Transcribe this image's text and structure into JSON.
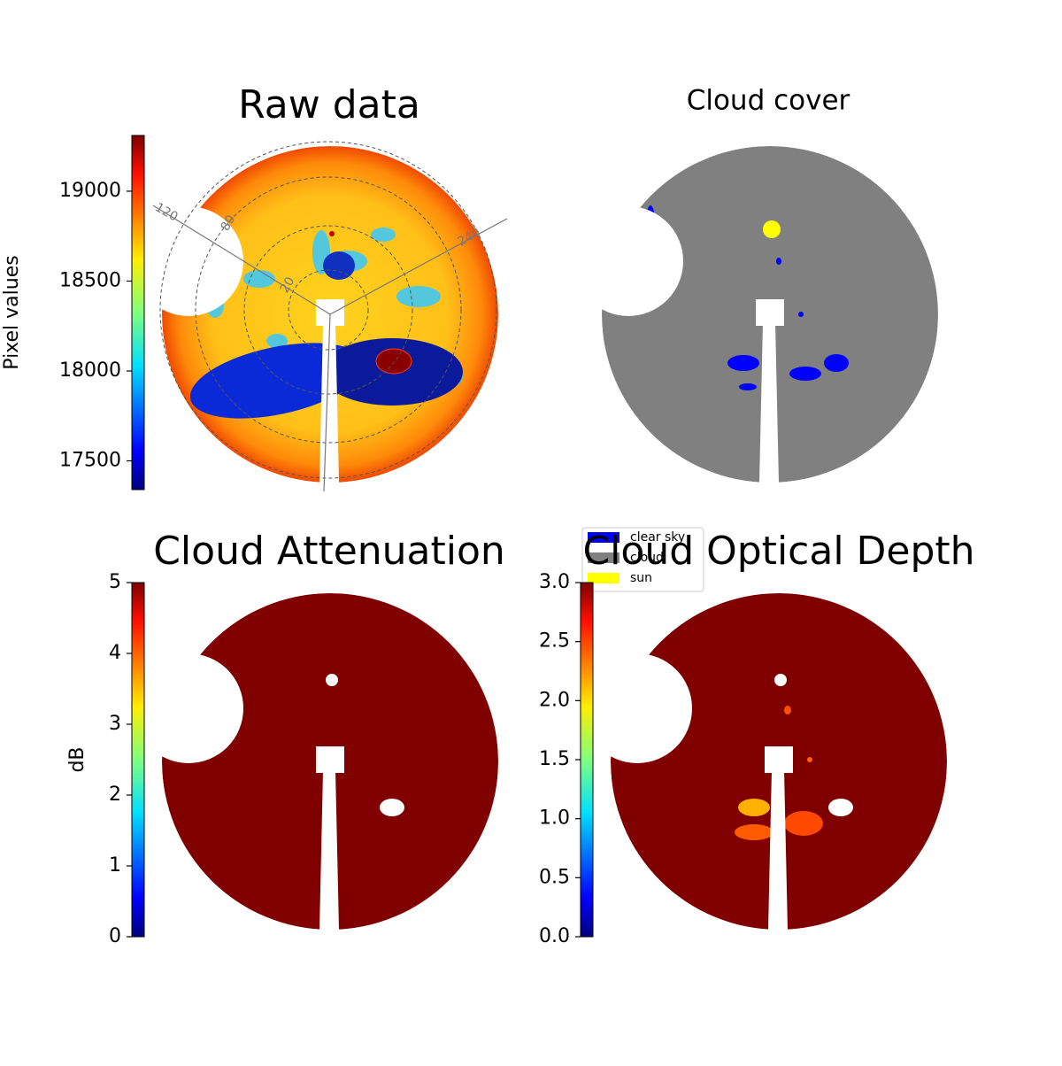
{
  "chart_data": [
    {
      "type": "image",
      "title": "Raw data",
      "colorbar": {
        "label": "Pixel values",
        "lim": [
          17340,
          19310
        ],
        "ticks": [
          17500,
          18000,
          18500,
          19000
        ],
        "colormap": "jet"
      },
      "polar_labels": [
        "120",
        "80",
        "20",
        "240"
      ]
    },
    {
      "type": "image",
      "title": "Cloud cover",
      "legend": {
        "entries": [
          {
            "name": "clear sky",
            "color": "#0000ff"
          },
          {
            "name": "cloud",
            "color": "#808080"
          },
          {
            "name": "sun",
            "color": "#ffff00"
          }
        ]
      }
    },
    {
      "type": "image",
      "title": "Cloud Attenuation",
      "colorbar": {
        "label": "dB",
        "lim": [
          0,
          5
        ],
        "ticks": [
          0,
          1,
          2,
          3,
          4,
          5
        ],
        "colormap": "jet"
      }
    },
    {
      "type": "image",
      "title": "Cloud Optical Depth",
      "colorbar": {
        "lim": [
          0,
          3
        ],
        "ticks": [
          {
            "value": 0,
            "label": "0.0"
          },
          {
            "value": 0.5,
            "label": "0.5"
          },
          {
            "value": 1,
            "label": "1.0"
          },
          {
            "value": 1.5,
            "label": "1.5"
          },
          {
            "value": 2,
            "label": "2.0"
          },
          {
            "value": 2.5,
            "label": "2.5"
          },
          {
            "value": 3,
            "label": "3.0"
          }
        ],
        "colormap": "jet"
      }
    }
  ]
}
